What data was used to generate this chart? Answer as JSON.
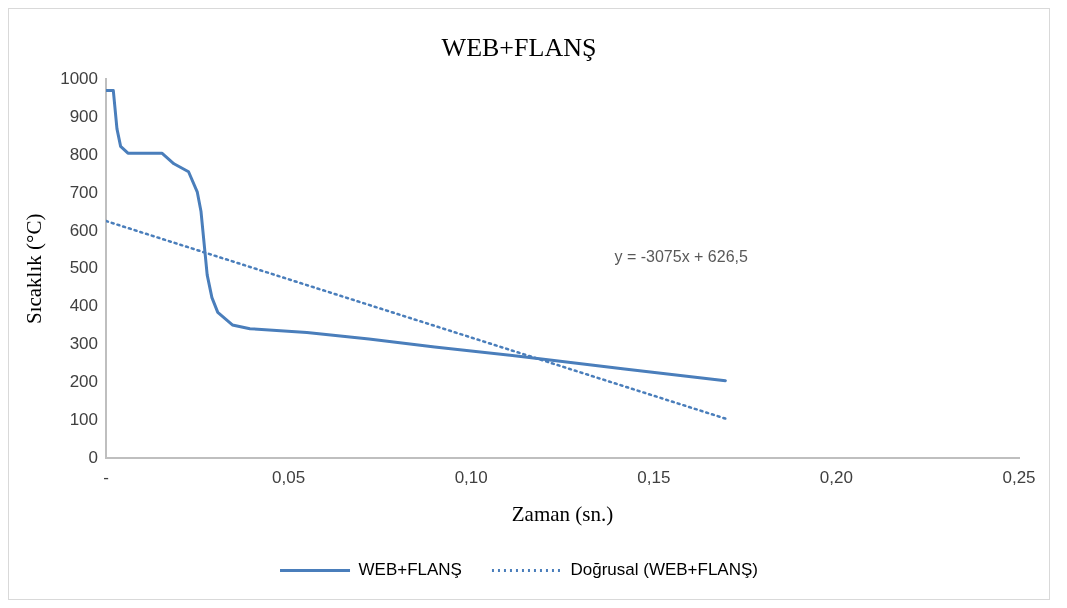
{
  "chart_data": {
    "type": "line",
    "title": "WEB+FLANŞ",
    "xlabel": "Zaman (sn.)",
    "ylabel": "Sıcaklık (°C)",
    "xlim": [
      0,
      0.25
    ],
    "xticks": [
      {
        "value": 0,
        "label": "-"
      },
      {
        "value": 0.05,
        "label": "0,05"
      },
      {
        "value": 0.1,
        "label": "0,10"
      },
      {
        "value": 0.15,
        "label": "0,15"
      },
      {
        "value": 0.2,
        "label": "0,20"
      },
      {
        "value": 0.25,
        "label": "0,25"
      }
    ],
    "ylim": [
      0,
      1000
    ],
    "yticks": [
      0,
      100,
      200,
      300,
      400,
      500,
      600,
      700,
      800,
      900,
      1000
    ],
    "series": [
      {
        "name": "WEB+FLANŞ",
        "color": "#4a7ebb",
        "line_style": "solid",
        "x": [
          0,
          0.002,
          0.003,
          0.004,
          0.006,
          0.0153,
          0.0186,
          0.0226,
          0.025,
          0.026,
          0.0277,
          0.029,
          0.0306,
          0.0346,
          0.0394,
          0.055,
          0.072,
          0.09,
          0.1136,
          0.142,
          0.1696
        ],
        "values": [
          970,
          970,
          869,
          823,
          805,
          805,
          777,
          756,
          702,
          652,
          484,
          424,
          385,
          352,
          342,
          332,
          315,
          294,
          269,
          236,
          205
        ]
      },
      {
        "name": "Doğrusal (WEB+FLANŞ)",
        "color": "#4a7ebb",
        "line_style": "dotted",
        "x": [
          0,
          0.1696
        ],
        "values": [
          626,
          105
        ]
      }
    ],
    "annotations": [
      "y = -3075x + 626,5"
    ],
    "grid": false,
    "legend": "bottom",
    "marker": "none"
  }
}
